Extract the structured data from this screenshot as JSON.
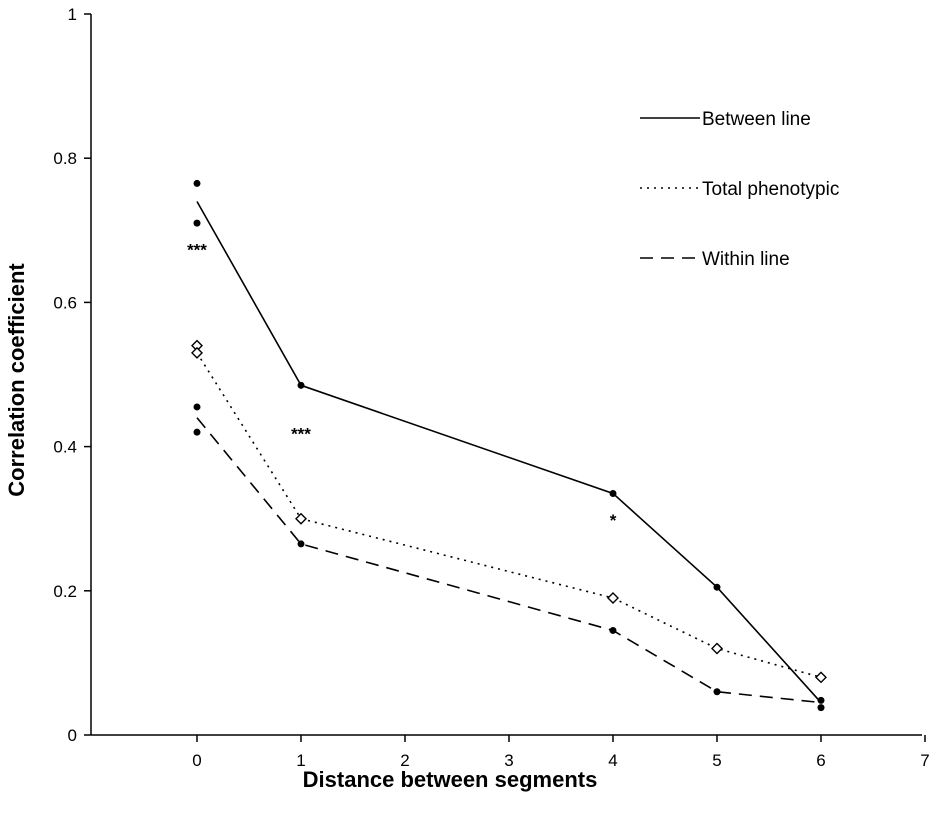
{
  "chart_data": {
    "type": "line",
    "xlabel": "Distance between segments",
    "ylabel": "Correlation coefficient",
    "categories": [
      "0",
      "1",
      "2",
      "3",
      "4",
      "5",
      "6",
      "7"
    ],
    "ylim": [
      0,
      1
    ],
    "yticks": [
      "0",
      "0.2",
      "0.4",
      "0.6",
      "0.8",
      "1"
    ],
    "grid": false,
    "legend_position": "top-right",
    "series": [
      {
        "name": "Between line",
        "style": "solid",
        "x": [
          "0",
          "1",
          "4",
          "5",
          "6"
        ],
        "values": [
          0.74,
          0.485,
          0.335,
          0.205,
          0.045
        ],
        "points": [
          {
            "x": "0",
            "y": 0.765
          },
          {
            "x": "0",
            "y": 0.71
          },
          {
            "x": "1",
            "y": 0.485
          },
          {
            "x": "4",
            "y": 0.335
          },
          {
            "x": "5",
            "y": 0.205
          },
          {
            "x": "6",
            "y": 0.048
          }
        ]
      },
      {
        "name": "Total phenotypic",
        "style": "dotted",
        "x": [
          "0",
          "1",
          "4",
          "5",
          "6"
        ],
        "values": [
          0.53,
          0.3,
          0.19,
          0.12,
          0.08
        ],
        "points": [
          {
            "x": "0",
            "y": 0.54
          },
          {
            "x": "0",
            "y": 0.53
          },
          {
            "x": "1",
            "y": 0.3
          },
          {
            "x": "4",
            "y": 0.19
          },
          {
            "x": "5",
            "y": 0.12
          },
          {
            "x": "6",
            "y": 0.08
          }
        ]
      },
      {
        "name": "Within line",
        "style": "dashed",
        "x": [
          "0",
          "1",
          "4",
          "5",
          "6"
        ],
        "values": [
          0.44,
          0.265,
          0.145,
          0.06,
          0.045
        ],
        "points": [
          {
            "x": "0",
            "y": 0.455
          },
          {
            "x": "0",
            "y": 0.42
          },
          {
            "x": "1",
            "y": 0.265
          },
          {
            "x": "4",
            "y": 0.145
          },
          {
            "x": "5",
            "y": 0.06
          },
          {
            "x": "6",
            "y": 0.038
          }
        ]
      }
    ],
    "annotations": [
      {
        "text": "***",
        "x": "0",
        "y": 0.665
      },
      {
        "text": "***",
        "x": "1",
        "y": 0.41
      },
      {
        "text": "*",
        "x": "4",
        "y": 0.29
      }
    ]
  }
}
